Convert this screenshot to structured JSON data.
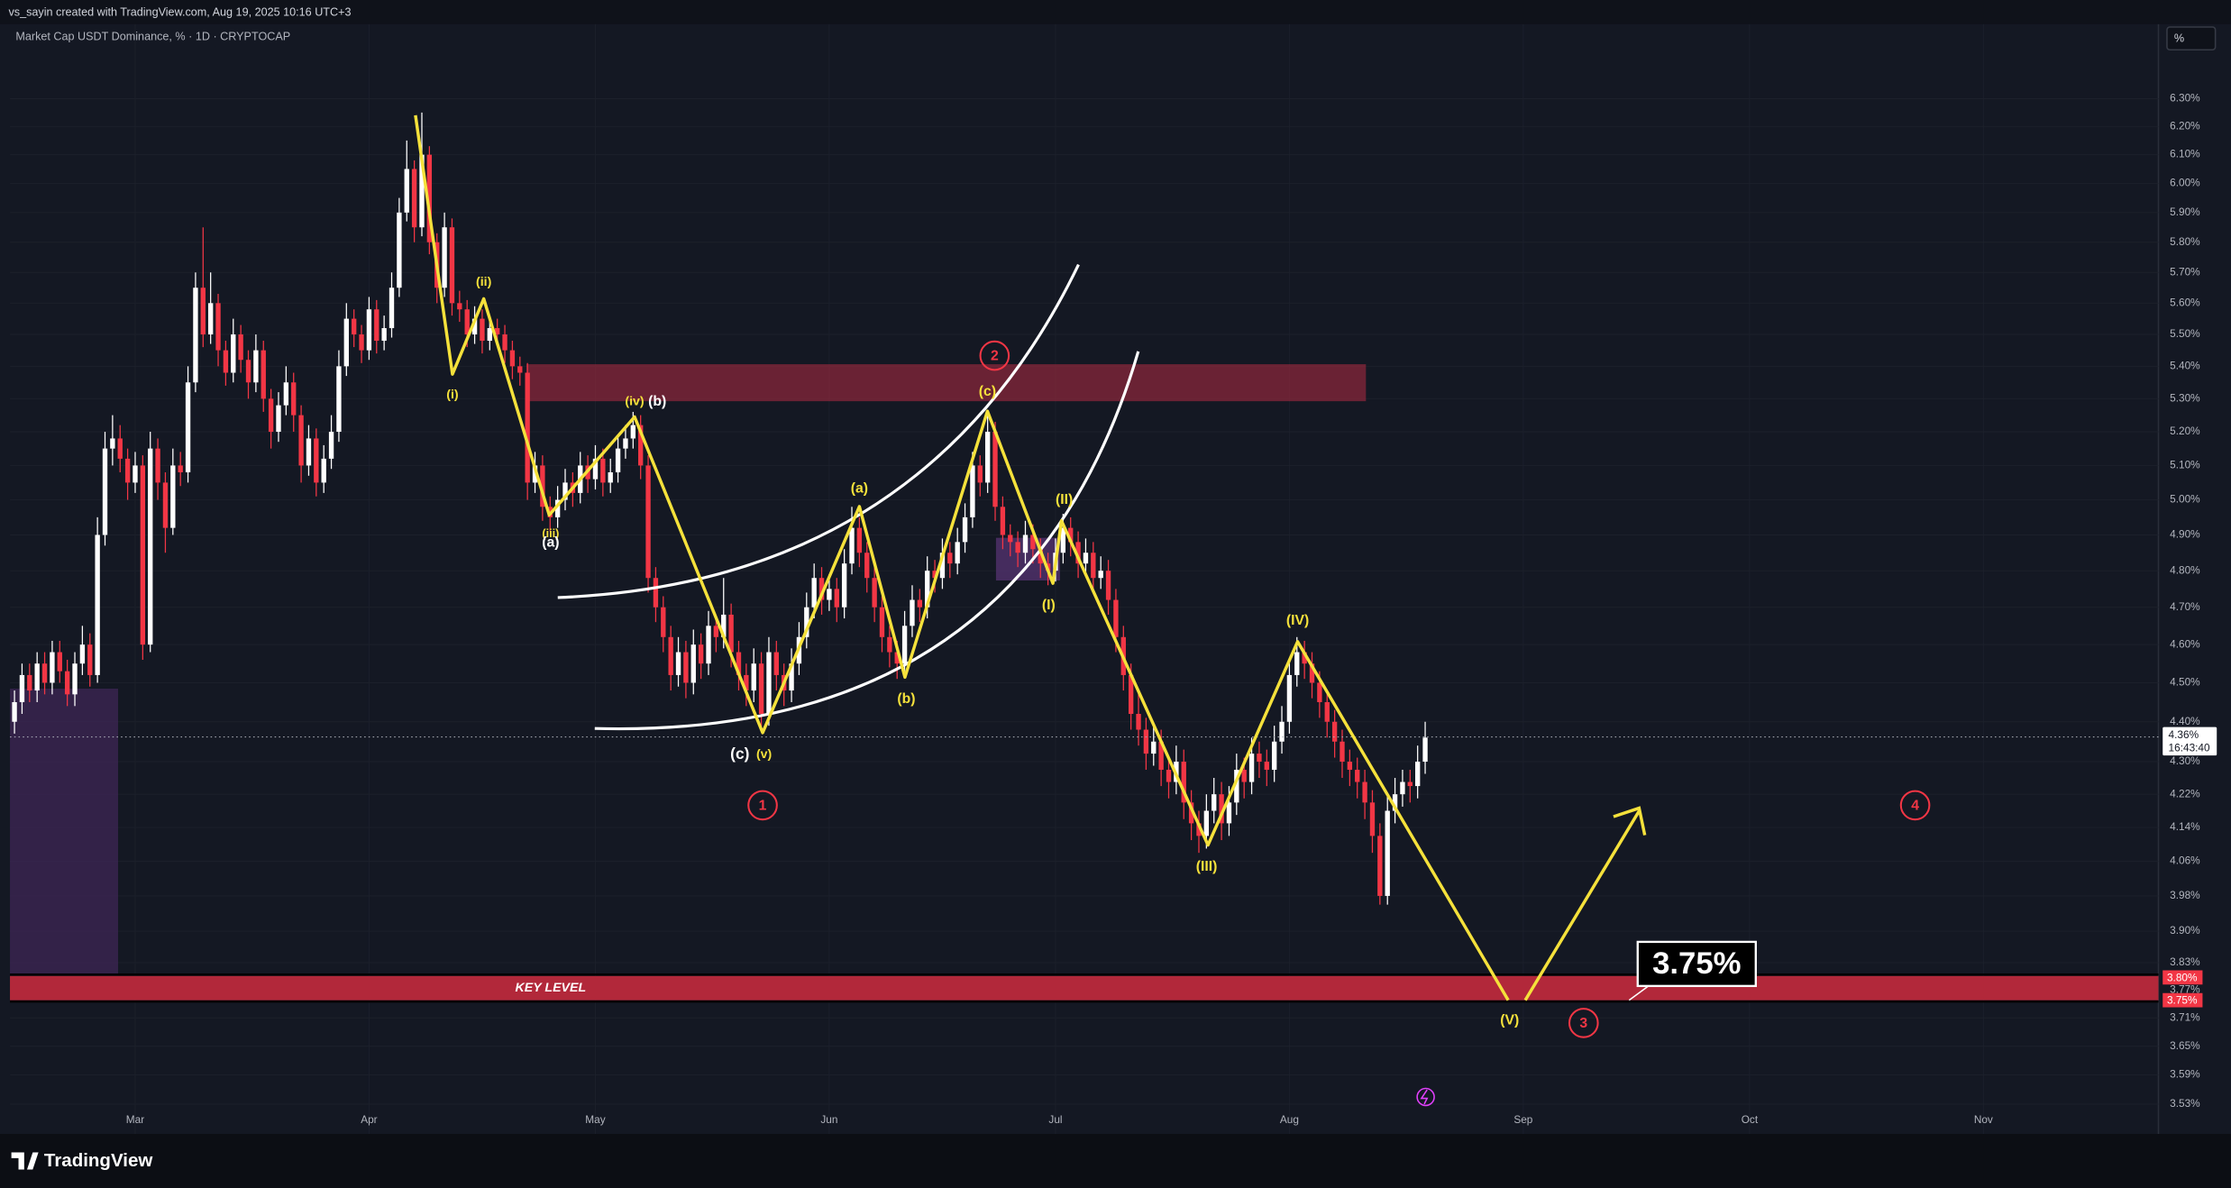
{
  "header": "vs_sayin created with TradingView.com, Aug 19, 2025 10:16 UTC+3",
  "footer": "TradingView",
  "chart_data": {
    "type": "candlestick",
    "title": "Market Cap USDT Dominance, % · 1D · CRYPTOCAP",
    "scale_unit": "%",
    "up_color": "#ffffff",
    "down_color": "#f23645",
    "log_scale": true,
    "grid": true,
    "xlim": [
      -16.6,
      268.2
    ],
    "xticks": [
      {
        "value": 0,
        "label": "Mar"
      },
      {
        "value": 31,
        "label": "Apr"
      },
      {
        "value": 61,
        "label": "May"
      },
      {
        "value": 92,
        "label": "Jun"
      },
      {
        "value": 122,
        "label": "Jul"
      },
      {
        "value": 153,
        "label": "Aug"
      },
      {
        "value": 184,
        "label": "Sep"
      },
      {
        "value": 214,
        "label": "Oct"
      },
      {
        "value": 245,
        "label": "Nov"
      }
    ],
    "ylim": [
      3.47,
      6.48
    ],
    "yticks": [
      {
        "value": 6.3,
        "label": "6.30%"
      },
      {
        "value": 6.2,
        "label": "6.20%"
      },
      {
        "value": 6.1,
        "label": "6.10%"
      },
      {
        "value": 6.0,
        "label": "6.00%"
      },
      {
        "value": 5.9,
        "label": "5.90%"
      },
      {
        "value": 5.8,
        "label": "5.80%"
      },
      {
        "value": 5.7,
        "label": "5.70%"
      },
      {
        "value": 5.6,
        "label": "5.60%"
      },
      {
        "value": 5.5,
        "label": "5.50%"
      },
      {
        "value": 5.4,
        "label": "5.40%"
      },
      {
        "value": 5.3,
        "label": "5.30%"
      },
      {
        "value": 5.2,
        "label": "5.20%"
      },
      {
        "value": 5.1,
        "label": "5.10%"
      },
      {
        "value": 5.0,
        "label": "5.00%"
      },
      {
        "value": 4.9,
        "label": "4.90%"
      },
      {
        "value": 4.8,
        "label": "4.80%"
      },
      {
        "value": 4.7,
        "label": "4.70%"
      },
      {
        "value": 4.6,
        "label": "4.60%"
      },
      {
        "value": 4.5,
        "label": "4.50%"
      },
      {
        "value": 4.4,
        "label": "4.40%"
      },
      {
        "value": 4.3,
        "label": "4.30%"
      },
      {
        "value": 4.22,
        "label": "4.22%"
      },
      {
        "value": 4.14,
        "label": "4.14%"
      },
      {
        "value": 4.06,
        "label": "4.06%"
      },
      {
        "value": 3.98,
        "label": "3.98%"
      },
      {
        "value": 3.9,
        "label": "3.90%"
      },
      {
        "value": 3.83,
        "label": "3.83%"
      },
      {
        "value": 3.77,
        "label": "3.77%"
      },
      {
        "value": 3.71,
        "label": "3.71%"
      },
      {
        "value": 3.65,
        "label": "3.65%"
      },
      {
        "value": 3.59,
        "label": "3.59%"
      },
      {
        "value": 3.53,
        "label": "3.53%"
      }
    ],
    "last_price_label": "4.36%",
    "countdown": "16:43:40",
    "level_labels": [
      "3.80%",
      "3.75%"
    ],
    "zone_label": "KEY LEVEL",
    "target_label": "3.75%",
    "annotations": [
      "(i)",
      "(ii)",
      "(iii)",
      "(a)",
      "(iv)",
      "(b)",
      "(a)",
      "(b)",
      "(c)",
      "(c)",
      "(v)",
      "(I)",
      "(II)",
      "(III)",
      "(IV)",
      "(V)",
      "1",
      "2",
      "3",
      "4"
    ],
    "x": [
      -16,
      -15,
      -14,
      -13,
      -12,
      -11,
      -10,
      -9,
      -8,
      -7,
      -6,
      -5,
      -4,
      -3,
      -2,
      -1,
      0,
      1,
      2,
      3,
      4,
      5,
      6,
      7,
      8,
      9,
      10,
      11,
      12,
      13,
      14,
      15,
      16,
      17,
      18,
      19,
      20,
      21,
      22,
      23,
      24,
      25,
      26,
      27,
      28,
      29,
      30,
      31,
      32,
      33,
      34,
      35,
      36,
      37,
      38,
      39,
      40,
      41,
      42,
      43,
      44,
      45,
      46,
      47,
      48,
      49,
      50,
      51,
      52,
      53,
      54,
      55,
      56,
      57,
      58,
      59,
      60,
      61,
      62,
      63,
      64,
      65,
      66,
      67,
      68,
      69,
      70,
      71,
      72,
      73,
      74,
      75,
      76,
      77,
      78,
      79,
      80,
      81,
      82,
      83,
      84,
      85,
      86,
      87,
      88,
      89,
      90,
      91,
      92,
      93,
      94,
      95,
      96,
      97,
      98,
      99,
      100,
      101,
      102,
      103,
      104,
      105,
      106,
      107,
      108,
      109,
      110,
      111,
      112,
      113,
      114,
      115,
      116,
      117,
      118,
      119,
      120,
      121,
      122,
      123,
      124,
      125,
      126,
      127,
      128,
      129,
      130,
      131,
      132,
      133,
      134,
      135,
      136,
      137,
      138,
      139,
      140,
      141,
      142,
      143,
      144,
      145,
      146,
      147,
      148,
      149,
      150,
      151,
      152,
      153,
      154,
      155,
      156,
      157,
      158,
      159,
      160,
      161,
      162,
      163,
      164,
      165,
      166,
      167,
      168,
      169,
      170,
      171
    ],
    "ohlc": [
      [
        4.4,
        4.48,
        4.37,
        4.45
      ],
      [
        4.45,
        4.55,
        4.42,
        4.52
      ],
      [
        4.52,
        4.55,
        4.45,
        4.48
      ],
      [
        4.48,
        4.58,
        4.45,
        4.55
      ],
      [
        4.55,
        4.58,
        4.47,
        4.5
      ],
      [
        4.5,
        4.61,
        4.47,
        4.58
      ],
      [
        4.58,
        4.61,
        4.5,
        4.53
      ],
      [
        4.53,
        4.56,
        4.44,
        4.47
      ],
      [
        4.47,
        4.58,
        4.44,
        4.55
      ],
      [
        4.55,
        4.65,
        4.52,
        4.6
      ],
      [
        4.6,
        4.63,
        4.49,
        4.52
      ],
      [
        4.52,
        4.95,
        4.5,
        4.9
      ],
      [
        4.9,
        5.2,
        4.87,
        5.15
      ],
      [
        5.15,
        5.25,
        5.1,
        5.18
      ],
      [
        5.18,
        5.22,
        5.08,
        5.12
      ],
      [
        5.12,
        5.15,
        5.0,
        5.05
      ],
      [
        5.05,
        5.14,
        5.02,
        5.1
      ],
      [
        5.1,
        5.13,
        4.56,
        4.6
      ],
      [
        4.6,
        5.2,
        4.58,
        5.15
      ],
      [
        5.15,
        5.18,
        5.0,
        5.05
      ],
      [
        5.05,
        5.08,
        4.85,
        4.92
      ],
      [
        4.92,
        5.15,
        4.9,
        5.1
      ],
      [
        5.1,
        5.14,
        5.04,
        5.08
      ],
      [
        5.08,
        5.4,
        5.05,
        5.35
      ],
      [
        5.35,
        5.7,
        5.32,
        5.65
      ],
      [
        5.65,
        5.85,
        5.46,
        5.5
      ],
      [
        5.5,
        5.7,
        5.47,
        5.6
      ],
      [
        5.6,
        5.63,
        5.4,
        5.45
      ],
      [
        5.45,
        5.48,
        5.34,
        5.38
      ],
      [
        5.38,
        5.55,
        5.35,
        5.5
      ],
      [
        5.5,
        5.53,
        5.38,
        5.42
      ],
      [
        5.42,
        5.45,
        5.3,
        5.35
      ],
      [
        5.35,
        5.5,
        5.32,
        5.45
      ],
      [
        5.45,
        5.48,
        5.26,
        5.3
      ],
      [
        5.3,
        5.33,
        5.15,
        5.2
      ],
      [
        5.2,
        5.32,
        5.17,
        5.28
      ],
      [
        5.28,
        5.4,
        5.25,
        5.35
      ],
      [
        5.35,
        5.38,
        5.2,
        5.25
      ],
      [
        5.25,
        5.28,
        5.05,
        5.1
      ],
      [
        5.1,
        5.22,
        5.07,
        5.18
      ],
      [
        5.18,
        5.21,
        5.01,
        5.05
      ],
      [
        5.05,
        5.16,
        5.02,
        5.12
      ],
      [
        5.12,
        5.25,
        5.09,
        5.2
      ],
      [
        5.2,
        5.45,
        5.17,
        5.4
      ],
      [
        5.4,
        5.6,
        5.37,
        5.55
      ],
      [
        5.55,
        5.58,
        5.46,
        5.5
      ],
      [
        5.5,
        5.53,
        5.41,
        5.45
      ],
      [
        5.45,
        5.62,
        5.42,
        5.58
      ],
      [
        5.58,
        5.61,
        5.44,
        5.48
      ],
      [
        5.48,
        5.56,
        5.45,
        5.52
      ],
      [
        5.52,
        5.7,
        5.49,
        5.65
      ],
      [
        5.65,
        5.95,
        5.62,
        5.9
      ],
      [
        5.9,
        6.15,
        5.87,
        6.05
      ],
      [
        6.05,
        6.08,
        5.8,
        5.85
      ],
      [
        5.85,
        6.25,
        5.82,
        6.1
      ],
      [
        6.1,
        6.13,
        5.76,
        5.8
      ],
      [
        5.8,
        5.83,
        5.6,
        5.65
      ],
      [
        5.65,
        5.9,
        5.62,
        5.85
      ],
      [
        5.85,
        5.88,
        5.56,
        5.6
      ],
      [
        5.6,
        5.64,
        5.54,
        5.58
      ],
      [
        5.58,
        5.61,
        5.46,
        5.5
      ],
      [
        5.5,
        5.59,
        5.47,
        5.55
      ],
      [
        5.55,
        5.58,
        5.44,
        5.48
      ],
      [
        5.48,
        5.56,
        5.45,
        5.52
      ],
      [
        5.52,
        5.55,
        5.46,
        5.5
      ],
      [
        5.5,
        5.53,
        5.41,
        5.45
      ],
      [
        5.45,
        5.48,
        5.36,
        5.4
      ],
      [
        5.4,
        5.43,
        5.34,
        5.38
      ],
      [
        5.38,
        5.41,
        5.0,
        5.05
      ],
      [
        5.05,
        5.14,
        5.02,
        5.1
      ],
      [
        5.1,
        5.13,
        4.94,
        4.98
      ],
      [
        4.98,
        5.01,
        4.91,
        4.95
      ],
      [
        4.95,
        5.04,
        4.92,
        5.0
      ],
      [
        5.0,
        5.09,
        4.97,
        5.05
      ],
      [
        5.05,
        5.08,
        4.98,
        5.02
      ],
      [
        5.02,
        5.14,
        4.99,
        5.1
      ],
      [
        5.1,
        5.13,
        5.02,
        5.06
      ],
      [
        5.06,
        5.16,
        5.03,
        5.12
      ],
      [
        5.12,
        5.15,
        5.01,
        5.05
      ],
      [
        5.05,
        5.12,
        5.02,
        5.08
      ],
      [
        5.08,
        5.19,
        5.05,
        5.15
      ],
      [
        5.15,
        5.22,
        5.12,
        5.18
      ],
      [
        5.18,
        5.26,
        5.15,
        5.22
      ],
      [
        5.22,
        5.25,
        5.06,
        5.1
      ],
      [
        5.1,
        5.13,
        4.74,
        4.78
      ],
      [
        4.78,
        4.81,
        4.66,
        4.7
      ],
      [
        4.7,
        4.73,
        4.58,
        4.62
      ],
      [
        4.62,
        4.65,
        4.48,
        4.52
      ],
      [
        4.52,
        4.62,
        4.49,
        4.58
      ],
      [
        4.58,
        4.61,
        4.46,
        4.5
      ],
      [
        4.5,
        4.64,
        4.47,
        4.6
      ],
      [
        4.6,
        4.63,
        4.51,
        4.55
      ],
      [
        4.55,
        4.69,
        4.52,
        4.65
      ],
      [
        4.65,
        4.68,
        4.58,
        4.62
      ],
      [
        4.62,
        4.78,
        4.59,
        4.68
      ],
      [
        4.68,
        4.71,
        4.54,
        4.58
      ],
      [
        4.58,
        4.61,
        4.48,
        4.52
      ],
      [
        4.52,
        4.55,
        4.44,
        4.48
      ],
      [
        4.48,
        4.59,
        4.45,
        4.55
      ],
      [
        4.55,
        4.58,
        4.38,
        4.42
      ],
      [
        4.42,
        4.62,
        4.39,
        4.58
      ],
      [
        4.58,
        4.61,
        4.48,
        4.52
      ],
      [
        4.52,
        4.55,
        4.44,
        4.48
      ],
      [
        4.48,
        4.59,
        4.45,
        4.55
      ],
      [
        4.55,
        4.66,
        4.52,
        4.62
      ],
      [
        4.62,
        4.74,
        4.59,
        4.7
      ],
      [
        4.7,
        4.82,
        4.67,
        4.78
      ],
      [
        4.78,
        4.81,
        4.68,
        4.72
      ],
      [
        4.72,
        4.79,
        4.69,
        4.75
      ],
      [
        4.75,
        4.78,
        4.66,
        4.7
      ],
      [
        4.7,
        4.86,
        4.67,
        4.82
      ],
      [
        4.82,
        4.98,
        4.79,
        4.92
      ],
      [
        4.92,
        4.95,
        4.81,
        4.85
      ],
      [
        4.85,
        4.88,
        4.74,
        4.78
      ],
      [
        4.78,
        4.81,
        4.66,
        4.7
      ],
      [
        4.7,
        4.73,
        4.58,
        4.62
      ],
      [
        4.62,
        4.65,
        4.54,
        4.58
      ],
      [
        4.58,
        4.61,
        4.51,
        4.55
      ],
      [
        4.55,
        4.69,
        4.52,
        4.65
      ],
      [
        4.65,
        4.76,
        4.62,
        4.72
      ],
      [
        4.72,
        4.75,
        4.66,
        4.7
      ],
      [
        4.7,
        4.84,
        4.67,
        4.8
      ],
      [
        4.8,
        4.83,
        4.74,
        4.78
      ],
      [
        4.78,
        4.89,
        4.75,
        4.85
      ],
      [
        4.85,
        4.88,
        4.78,
        4.82
      ],
      [
        4.82,
        4.92,
        4.79,
        4.88
      ],
      [
        4.88,
        4.99,
        4.85,
        4.95
      ],
      [
        4.95,
        5.14,
        4.92,
        5.1
      ],
      [
        5.1,
        5.13,
        5.01,
        5.05
      ],
      [
        5.05,
        5.26,
        5.02,
        5.2
      ],
      [
        5.2,
        5.23,
        4.94,
        4.98
      ],
      [
        4.98,
        5.01,
        4.86,
        4.9
      ],
      [
        4.9,
        4.93,
        4.84,
        4.88
      ],
      [
        4.88,
        4.91,
        4.81,
        4.85
      ],
      [
        4.85,
        4.94,
        4.82,
        4.9
      ],
      [
        4.9,
        4.93,
        4.82,
        4.86
      ],
      [
        4.86,
        4.89,
        4.78,
        4.82
      ],
      [
        4.82,
        4.85,
        4.76,
        4.8
      ],
      [
        4.8,
        4.89,
        4.77,
        4.85
      ],
      [
        4.85,
        4.96,
        4.82,
        4.92
      ],
      [
        4.92,
        4.95,
        4.84,
        4.88
      ],
      [
        4.88,
        4.91,
        4.78,
        4.82
      ],
      [
        4.82,
        4.89,
        4.79,
        4.85
      ],
      [
        4.85,
        4.88,
        4.74,
        4.78
      ],
      [
        4.78,
        4.84,
        4.75,
        4.8
      ],
      [
        4.8,
        4.83,
        4.68,
        4.72
      ],
      [
        4.72,
        4.75,
        4.58,
        4.62
      ],
      [
        4.62,
        4.65,
        4.48,
        4.52
      ],
      [
        4.52,
        4.55,
        4.38,
        4.42
      ],
      [
        4.42,
        4.48,
        4.34,
        4.38
      ],
      [
        4.38,
        4.41,
        4.28,
        4.32
      ],
      [
        4.32,
        4.39,
        4.29,
        4.35
      ],
      [
        4.35,
        4.38,
        4.24,
        4.28
      ],
      [
        4.28,
        4.31,
        4.21,
        4.25
      ],
      [
        4.25,
        4.34,
        4.22,
        4.3
      ],
      [
        4.3,
        4.33,
        4.16,
        4.2
      ],
      [
        4.2,
        4.23,
        4.11,
        4.15
      ],
      [
        4.15,
        4.18,
        4.08,
        4.12
      ],
      [
        4.12,
        4.22,
        4.09,
        4.18
      ],
      [
        4.18,
        4.26,
        4.15,
        4.22
      ],
      [
        4.22,
        4.25,
        4.11,
        4.15
      ],
      [
        4.15,
        4.24,
        4.12,
        4.2
      ],
      [
        4.2,
        4.32,
        4.17,
        4.28
      ],
      [
        4.28,
        4.31,
        4.21,
        4.25
      ],
      [
        4.25,
        4.36,
        4.22,
        4.32
      ],
      [
        4.32,
        4.35,
        4.26,
        4.3
      ],
      [
        4.3,
        4.33,
        4.24,
        4.28
      ],
      [
        4.28,
        4.39,
        4.25,
        4.35
      ],
      [
        4.35,
        4.44,
        4.32,
        4.4
      ],
      [
        4.4,
        4.56,
        4.37,
        4.52
      ],
      [
        4.52,
        4.62,
        4.49,
        4.58
      ],
      [
        4.58,
        4.61,
        4.51,
        4.55
      ],
      [
        4.55,
        4.58,
        4.46,
        4.5
      ],
      [
        4.5,
        4.53,
        4.41,
        4.45
      ],
      [
        4.45,
        4.48,
        4.36,
        4.4
      ],
      [
        4.4,
        4.43,
        4.31,
        4.35
      ],
      [
        4.35,
        4.38,
        4.26,
        4.3
      ],
      [
        4.3,
        4.33,
        4.24,
        4.28
      ],
      [
        4.28,
        4.31,
        4.21,
        4.25
      ],
      [
        4.25,
        4.28,
        4.16,
        4.2
      ],
      [
        4.2,
        4.23,
        4.08,
        4.12
      ],
      [
        4.12,
        4.15,
        3.96,
        3.98
      ],
      [
        3.98,
        4.22,
        3.96,
        4.18
      ],
      [
        4.18,
        4.26,
        4.15,
        4.22
      ],
      [
        4.22,
        4.28,
        4.19,
        4.25
      ],
      [
        4.25,
        4.28,
        4.2,
        4.24
      ],
      [
        4.24,
        4.34,
        4.21,
        4.3
      ],
      [
        4.3,
        4.4,
        4.27,
        4.36
      ]
    ]
  }
}
